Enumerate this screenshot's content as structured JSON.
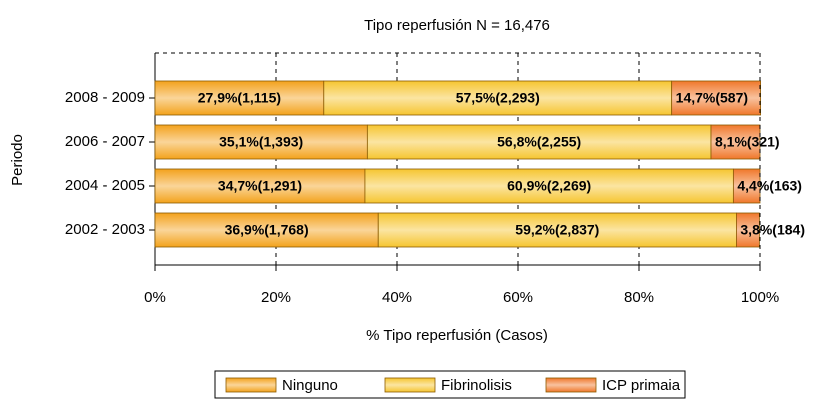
{
  "chart_data": {
    "type": "stacked-barh",
    "title": "Tipo reperfusión N = 16,476",
    "xlabel": "% Tipo reperfusión (Casos)",
    "ylabel": "Periodo",
    "categories": [
      "2008 - 2009",
      "2006 - 2007",
      "2004 - 2005",
      "2002 - 2003"
    ],
    "series": [
      {
        "name": "Ninguno",
        "color": "#f3a21c",
        "values": [
          27.9,
          35.1,
          34.7,
          36.9
        ],
        "value_labels": [
          "27,9%(1,115)",
          "35,1%(1,393)",
          "34,7%(1,291)",
          "36,9%(1,768)"
        ]
      },
      {
        "name": "Fibrinolisis",
        "color": "#f6c530",
        "values": [
          57.5,
          56.8,
          60.9,
          59.2
        ],
        "value_labels": [
          "57,5%(2,293)",
          "56,8%(2,255)",
          "60,9%(2,269)",
          "59,2%(2,837)"
        ]
      },
      {
        "name": "ICP primaia",
        "color": "#f0772a",
        "values": [
          14.7,
          8.1,
          4.4,
          3.8
        ],
        "value_labels": [
          "14,7%(587)",
          "8,1%(321)",
          "4,4%(163)",
          "3,8%(184)"
        ]
      }
    ],
    "xlim": [
      0,
      100
    ],
    "xticks": [
      {
        "value": 0,
        "label": "0%"
      },
      {
        "value": 20,
        "label": "20%"
      },
      {
        "value": 40,
        "label": "40%"
      },
      {
        "value": 60,
        "label": "60%"
      },
      {
        "value": 80,
        "label": "80%"
      },
      {
        "value": 100,
        "label": "100%"
      }
    ],
    "grid": true,
    "legend": "bottom"
  }
}
